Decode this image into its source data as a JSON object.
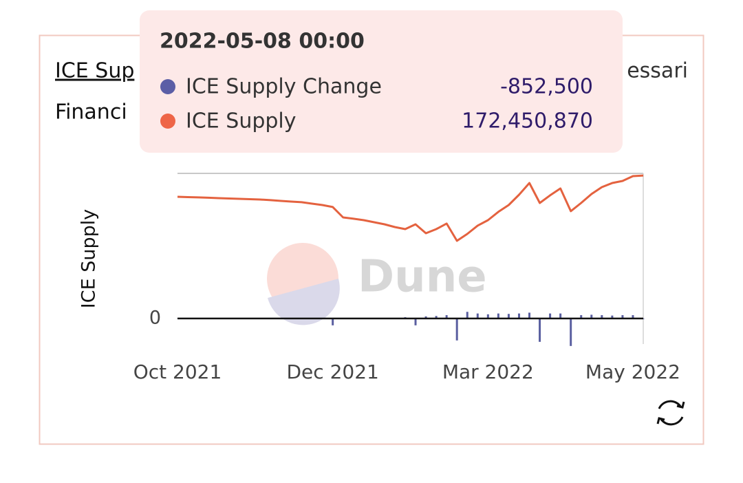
{
  "page": {
    "title_visible": "ICE Sup",
    "source_visible": "essari",
    "subtitle_visible": "Financi",
    "watermark": "Dune"
  },
  "chart_data": {
    "type": "combo",
    "y_label": "ICE Supply",
    "x": [
      "2021-10-01",
      "2021-10-05",
      "2021-10-09",
      "2021-10-13",
      "2021-10-17",
      "2021-10-21",
      "2021-10-25",
      "2021-10-29",
      "2021-11-02",
      "2021-11-06",
      "2021-11-10",
      "2021-11-14",
      "2021-11-18",
      "2021-11-22",
      "2021-11-26",
      "2021-12-01",
      "2021-12-07",
      "2021-12-13",
      "2021-12-19",
      "2021-12-25",
      "2021-12-31",
      "2022-01-06",
      "2022-01-12",
      "2022-01-18",
      "2022-01-24",
      "2022-01-30",
      "2022-02-05",
      "2022-02-11",
      "2022-02-17",
      "2022-02-23",
      "2022-03-01",
      "2022-03-05",
      "2022-03-09",
      "2022-03-14",
      "2022-03-18",
      "2022-03-22",
      "2022-03-27",
      "2022-03-31",
      "2022-04-04",
      "2022-04-09",
      "2022-04-13",
      "2022-04-17",
      "2022-04-22",
      "2022-04-26",
      "2022-05-01",
      "2022-05-08"
    ],
    "series": [
      {
        "name": "ICE Supply Change",
        "type": "bar",
        "color": "#5a5fa0",
        "values": [
          100000,
          100000,
          100000,
          100000,
          100000,
          100000,
          100000,
          100000,
          100000,
          100000,
          100000,
          100000,
          100000,
          100000,
          100000,
          -8300000,
          500000,
          500000,
          500000,
          500000,
          500000,
          500000,
          1500000,
          -8300000,
          2500000,
          3000000,
          4000000,
          -26500000,
          8000000,
          6000000,
          5000000,
          6000000,
          5500000,
          6000000,
          7000000,
          -28200000,
          6000000,
          6000000,
          -33200000,
          4000000,
          4500000,
          4000000,
          3500000,
          4000000,
          4000000,
          -852500
        ]
      },
      {
        "name": "ICE Supply",
        "type": "line",
        "color": "#e4623f",
        "values": [
          146800000,
          146400000,
          146000000,
          145600000,
          145100000,
          144700000,
          144300000,
          143900000,
          143500000,
          142700000,
          141800000,
          141000000,
          140200000,
          138500000,
          136800000,
          134400000,
          121900000,
          120300000,
          118600000,
          116100000,
          113600000,
          110300000,
          107800000,
          113600000,
          102800000,
          107800000,
          114500000,
          93700000,
          102000000,
          112000000,
          118600000,
          128600000,
          136800000,
          149300000,
          163400000,
          139300000,
          148500000,
          156800000,
          129400000,
          139300000,
          150100000,
          158400000,
          163400000,
          165900000,
          171700000,
          172450870
        ]
      }
    ],
    "ylim": [
      -30000000,
      175000000
    ],
    "yticks": [
      0
    ],
    "xticks": [
      {
        "value": "2021-10-01",
        "label": "Oct 2021"
      },
      {
        "value": "2021-12-01",
        "label": "Dec 2021"
      },
      {
        "value": "2022-03-01",
        "label": "Mar 2022"
      },
      {
        "value": "2022-05-01",
        "label": "May 2022"
      }
    ],
    "tooltip": {
      "date": "2022-05-08 00:00",
      "labels": [
        "-852,500",
        "172,450,870"
      ]
    }
  }
}
